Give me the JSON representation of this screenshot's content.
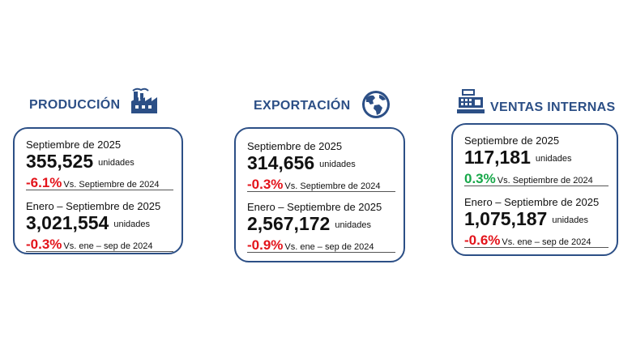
{
  "colors": {
    "accent": "#2c4f86",
    "negative": "#e3141b",
    "positive": "#18a84a"
  },
  "sections": [
    {
      "title": "PRODUCCIÓN",
      "icon": "factory-icon",
      "monthly": {
        "period": "Septiembre de 2025",
        "value": "355,525",
        "unit": "unidades",
        "change": "-6.1%",
        "comparison": "Vs. Septiembre de 2024"
      },
      "ytd": {
        "period": "Enero – Septiembre de 2025",
        "value": "3,021,554",
        "unit": "unidades",
        "change": "-0.3%",
        "comparison": "Vs. ene – sep de 2024"
      }
    },
    {
      "title": "EXPORTACIÓN",
      "icon": "globe-icon",
      "monthly": {
        "period": "Septiembre de 2025",
        "value": "314,656",
        "unit": "unidades",
        "change": "-0.3%",
        "comparison": "Vs. Septiembre de 2024"
      },
      "ytd": {
        "period": "Enero – Septiembre de 2025",
        "value": "2,567,172",
        "unit": "unidades",
        "change": "-0.9%",
        "comparison": "Vs. ene – sep de 2024"
      }
    },
    {
      "title": "VENTAS INTERNAS",
      "icon": "cash-register-icon",
      "monthly": {
        "period": "Septiembre de 2025",
        "value": "117,181",
        "unit": "unidades",
        "change": "0.3%",
        "comparison": "Vs. Septiembre de 2024"
      },
      "ytd": {
        "period": "Enero – Septiembre de 2025",
        "value": "1,075,187",
        "unit": "unidades",
        "change": "-0.6%",
        "comparison": "Vs. ene – sep de 2024"
      }
    }
  ]
}
